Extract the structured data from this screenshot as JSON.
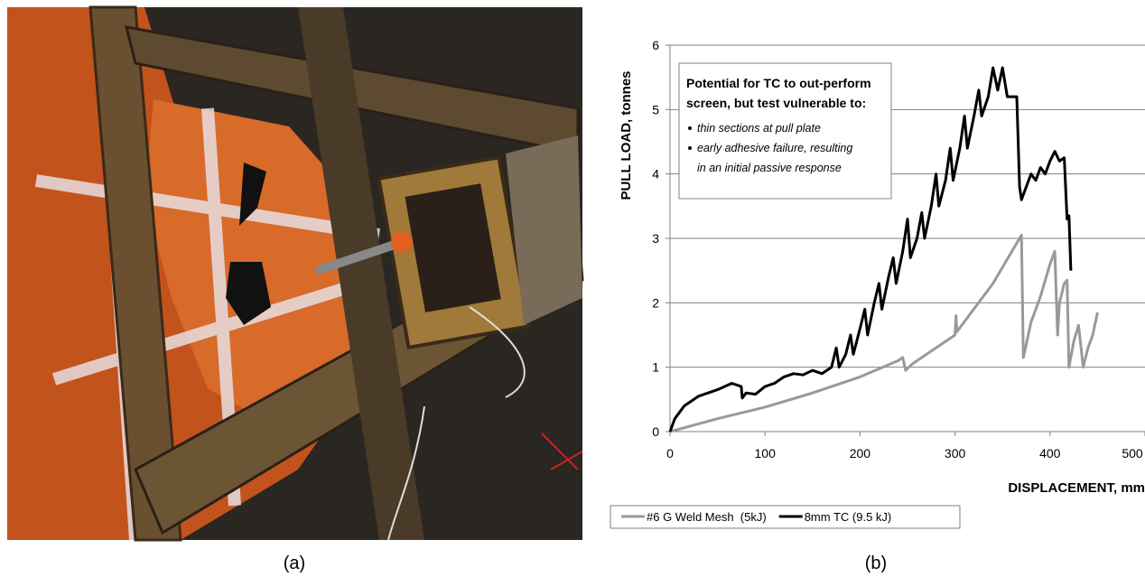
{
  "photo_label": "(a)",
  "chart_label": "(b)",
  "chart_data": {
    "type": "line",
    "xlabel": "DISPLACEMENT, mm",
    "ylabel": "PULL LOAD, tonnes",
    "annotation": {
      "heading": [
        "Potential for TC to out-perform",
        "screen, but test vulnerable to:"
      ],
      "bullets": [
        [
          "thin sections at pull plate"
        ],
        [
          "early adhesive failure, resulting",
          "in an initial passive response"
        ]
      ]
    },
    "xlim": [
      0,
      500
    ],
    "xticks": [
      0,
      100,
      200,
      300,
      400,
      500
    ],
    "ylim": [
      0,
      6
    ],
    "yticks": [
      0,
      1,
      2,
      3,
      4,
      5,
      6
    ],
    "grid": true,
    "series": [
      {
        "name": "#6 G Weld Mesh  (5kJ)",
        "color": "#999999",
        "x": [
          0,
          50,
          100,
          150,
          200,
          240,
          245,
          248,
          255,
          260,
          300,
          301,
          302,
          340,
          370,
          372,
          380,
          390,
          400,
          405,
          408,
          410,
          415,
          418,
          420,
          425,
          430,
          435,
          440,
          445,
          450
        ],
        "values": [
          0,
          0.2,
          0.38,
          0.6,
          0.85,
          1.1,
          1.15,
          0.95,
          1.05,
          1.1,
          1.5,
          1.8,
          1.55,
          2.3,
          3.05,
          1.15,
          1.7,
          2.1,
          2.6,
          2.8,
          1.5,
          2.0,
          2.3,
          2.35,
          1.0,
          1.4,
          1.65,
          1.0,
          1.3,
          1.5,
          1.85
        ]
      },
      {
        "name": "8mm TC (9.5 kJ)",
        "color": "#000000",
        "x": [
          0,
          5,
          15,
          30,
          50,
          65,
          75,
          76,
          80,
          90,
          100,
          110,
          120,
          130,
          140,
          150,
          160,
          170,
          175,
          178,
          185,
          190,
          193,
          200,
          205,
          208,
          215,
          220,
          223,
          230,
          235,
          238,
          245,
          250,
          253,
          260,
          265,
          268,
          275,
          280,
          283,
          290,
          295,
          298,
          305,
          310,
          313,
          320,
          325,
          328,
          335,
          340,
          345,
          350,
          355,
          365,
          368,
          370,
          375,
          380,
          385,
          390,
          395,
          400,
          405,
          410,
          415,
          418,
          420,
          422
        ],
        "values": [
          0,
          0.2,
          0.4,
          0.55,
          0.65,
          0.75,
          0.7,
          0.52,
          0.6,
          0.58,
          0.7,
          0.75,
          0.85,
          0.9,
          0.88,
          0.95,
          0.9,
          1.0,
          1.3,
          1.0,
          1.2,
          1.5,
          1.2,
          1.6,
          1.9,
          1.5,
          2.0,
          2.3,
          1.9,
          2.4,
          2.7,
          2.3,
          2.8,
          3.3,
          2.7,
          3.0,
          3.4,
          3.0,
          3.5,
          4.0,
          3.5,
          3.9,
          4.4,
          3.9,
          4.4,
          4.9,
          4.4,
          4.9,
          5.3,
          4.9,
          5.2,
          5.65,
          5.3,
          5.65,
          5.2,
          5.2,
          3.8,
          3.6,
          3.8,
          4.0,
          3.9,
          4.1,
          4.0,
          4.2,
          4.35,
          4.2,
          4.25,
          3.3,
          3.35,
          2.5
        ]
      }
    ]
  }
}
